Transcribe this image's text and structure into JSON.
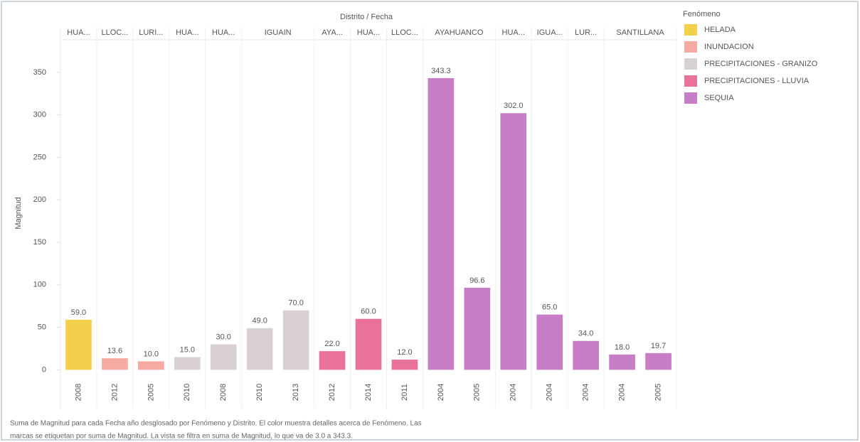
{
  "chart_data": {
    "type": "bar",
    "title": "Distrito / Fecha",
    "y_label": "Magnitud",
    "legend_title": "Fenómeno",
    "legend_position": "right",
    "districts": [
      "HUA...",
      "LLOC...",
      "LURI...",
      "HUA...",
      "HUA...",
      "IGUAIN",
      null,
      "AYA...",
      "HUA...",
      "LLOC...",
      "AYAHUANCO",
      null,
      "HUA...",
      "IGUA...",
      "LUR...",
      "SANTILLANA",
      null
    ],
    "categories": [
      "2008",
      "2012",
      "2005",
      "2010",
      "2008",
      "2010",
      "2013",
      "2012",
      "2014",
      "2011",
      "2004",
      "2005",
      "2004",
      "2004",
      "2004",
      "2004",
      "2005"
    ],
    "series": [
      {
        "name": "HELADA",
        "color": "#f3d04c",
        "values": [
          59,
          null,
          null,
          null,
          null,
          null,
          null,
          null,
          null,
          null,
          null,
          null,
          null,
          null,
          null,
          null,
          null
        ],
        "value_labels": [
          "59.0",
          null,
          null,
          null,
          null,
          null,
          null,
          null,
          null,
          null,
          null,
          null,
          null,
          null,
          null,
          null,
          null
        ]
      },
      {
        "name": "INUNDACION",
        "color": "#f5aaa2",
        "values": [
          null,
          13.6,
          10,
          null,
          null,
          null,
          null,
          null,
          null,
          null,
          null,
          null,
          null,
          null,
          null,
          null,
          null
        ],
        "value_labels": [
          null,
          "13.6",
          "10.0",
          null,
          null,
          null,
          null,
          null,
          null,
          null,
          null,
          null,
          null,
          null,
          null,
          null,
          null
        ]
      },
      {
        "name": "PRECIPITACIONES - GRANIZO",
        "color": "#d9d0d2",
        "values": [
          null,
          null,
          null,
          15,
          30,
          49,
          70,
          null,
          null,
          null,
          null,
          null,
          null,
          null,
          null,
          null,
          null
        ],
        "value_labels": [
          null,
          null,
          null,
          "15.0",
          "30.0",
          "49.0",
          "70.0",
          null,
          null,
          null,
          null,
          null,
          null,
          null,
          null,
          null,
          null
        ]
      },
      {
        "name": "PRECIPITACIONES - LLUVIA",
        "color": "#e9729c",
        "values": [
          null,
          null,
          null,
          null,
          null,
          null,
          null,
          22,
          60,
          12,
          null,
          null,
          null,
          null,
          null,
          null,
          null
        ],
        "value_labels": [
          null,
          null,
          null,
          null,
          null,
          null,
          null,
          "22.0",
          "60.0",
          "12.0",
          null,
          null,
          null,
          null,
          null,
          null,
          null
        ]
      },
      {
        "name": "SEQUIA",
        "color": "#c77ec6",
        "values": [
          null,
          null,
          null,
          null,
          null,
          null,
          null,
          null,
          null,
          null,
          343.3,
          96.6,
          302,
          65,
          34,
          18,
          19.7
        ],
        "value_labels": [
          null,
          null,
          null,
          null,
          null,
          null,
          null,
          null,
          null,
          null,
          "343.3",
          "96.6",
          "302.0",
          "65.0",
          "34.0",
          "18.0",
          "19.7"
        ]
      }
    ],
    "ylim": [
      -8,
      385
    ],
    "yticks": [
      0,
      50,
      100,
      150,
      200,
      250,
      300,
      350
    ],
    "caption": [
      "Suma de Magnitud para cada Fecha año desglosado por Fenómeno y Distrito.  El color muestra detalles acerca de Fenómeno.  Las",
      "marcas se etiquetan por suma de Magnitud. La vista se filtra en suma de Magnitud, lo que va de 3.0 a 343.3."
    ]
  }
}
